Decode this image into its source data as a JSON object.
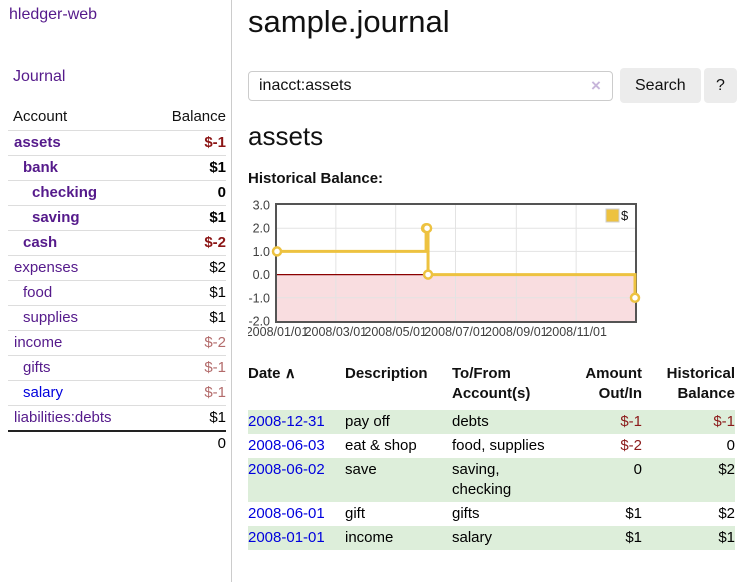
{
  "colors": {
    "link_purple": "#551a8b",
    "link_blue": "#0000dd",
    "negative_strong": "#8b1515",
    "negative_muted": "#b36b6b",
    "row_stripe_green": "#ddeeda",
    "series_gold": "#edc240"
  },
  "sidebar": {
    "app_title": "hledger-web",
    "nav_journal": "Journal",
    "accounts": {
      "header_account": "Account",
      "header_balance": "Balance",
      "rows": [
        {
          "name": "assets",
          "depth": 1,
          "bold": true,
          "balance": "$-1",
          "tone": "neg-strong"
        },
        {
          "name": "bank",
          "depth": 2,
          "bold": true,
          "balance": "$1",
          "tone": ""
        },
        {
          "name": "checking",
          "depth": 3,
          "bold": true,
          "balance": "0",
          "tone": ""
        },
        {
          "name": "saving",
          "depth": 3,
          "bold": true,
          "balance": "$1",
          "tone": ""
        },
        {
          "name": "cash",
          "depth": 2,
          "bold": true,
          "balance": "$-2",
          "tone": "neg-strong"
        },
        {
          "name": "expenses",
          "depth": 1,
          "bold": false,
          "balance": "$2",
          "tone": ""
        },
        {
          "name": "food",
          "depth": 2,
          "bold": false,
          "balance": "$1",
          "tone": ""
        },
        {
          "name": "supplies",
          "depth": 2,
          "bold": false,
          "balance": "$1",
          "tone": ""
        },
        {
          "name": "income",
          "depth": 1,
          "bold": false,
          "balance": "$-2",
          "tone": "neg-muted"
        },
        {
          "name": "gifts",
          "depth": 2,
          "bold": false,
          "balance": "$-1",
          "tone": "neg-muted"
        },
        {
          "name": "salary",
          "depth": 2,
          "bold": false,
          "balance": "$-1",
          "tone": "neg-muted",
          "link": "blue"
        },
        {
          "name": "liabilities:debts",
          "depth": 1,
          "bold": false,
          "balance": "$1",
          "tone": ""
        }
      ],
      "total": "0"
    }
  },
  "main": {
    "title": "sample.journal",
    "search": {
      "value": "inacct:assets",
      "clear_icon": "×",
      "search_button": "Search",
      "help_button": "?"
    },
    "account_heading": "assets",
    "chart_title": "Historical Balance:"
  },
  "chart_data": {
    "type": "line",
    "step": true,
    "title": "Historical Balance",
    "series": [
      {
        "name": "$",
        "color": "#edc240",
        "points": [
          [
            "2008-01-01",
            1
          ],
          [
            "2008-06-01",
            2
          ],
          [
            "2008-06-02",
            2
          ],
          [
            "2008-06-03",
            0
          ],
          [
            "2008-12-31",
            -1
          ]
        ]
      }
    ],
    "x_domain": [
      "2008-01-01",
      "2008-12-31"
    ],
    "x_ticks": [
      "2008/01/01",
      "2008/03/01",
      "2008/05/01",
      "2008/07/01",
      "2008/09/01",
      "2008/11/01"
    ],
    "y_ticks": [
      "3.0",
      "2.0",
      "1.0",
      "0.0",
      "-1.0",
      "-2.0"
    ],
    "ylim": [
      -2,
      3
    ],
    "grid": true,
    "legend": {
      "label": "$",
      "position": "top-right",
      "swatch_color": "#edc240"
    },
    "negative_region_color": "#f9dde0",
    "zero_line_color": "#8b0000",
    "grid_color": "#e3e3e3",
    "border_color": "#545454"
  },
  "register": {
    "headers": [
      {
        "lines": [
          "Date"
        ],
        "align": "left",
        "sort": "ascending",
        "sort_icon": "∧"
      },
      {
        "lines": [
          "Description"
        ],
        "align": "left"
      },
      {
        "lines": [
          "To/From",
          "Account(s)"
        ],
        "align": "left"
      },
      {
        "lines": [
          "Amount",
          "Out/In"
        ],
        "align": "right"
      },
      {
        "lines": [
          "Historical",
          "Balance"
        ],
        "align": "right"
      }
    ],
    "rows": [
      {
        "date": "2008-12-31",
        "description": "pay off",
        "accounts": "debts",
        "amount": "$-1",
        "amount_tone": "neg",
        "balance": "$-1",
        "balance_tone": "neg",
        "striped": true
      },
      {
        "date": "2008-06-03",
        "description": "eat & shop",
        "accounts": "food, supplies",
        "amount": "$-2",
        "amount_tone": "neg",
        "balance": "0",
        "balance_tone": "",
        "striped": false
      },
      {
        "date": "2008-06-02",
        "description": "save",
        "accounts": "saving, checking",
        "amount": "0",
        "amount_tone": "",
        "balance": "$2",
        "balance_tone": "",
        "striped": true
      },
      {
        "date": "2008-06-01",
        "description": "gift",
        "accounts": "gifts",
        "amount": "$1",
        "amount_tone": "",
        "balance": "$2",
        "balance_tone": "",
        "striped": false
      },
      {
        "date": "2008-01-01",
        "description": "income",
        "accounts": "salary",
        "amount": "$1",
        "amount_tone": "",
        "balance": "$1",
        "balance_tone": "",
        "striped": true
      }
    ]
  }
}
